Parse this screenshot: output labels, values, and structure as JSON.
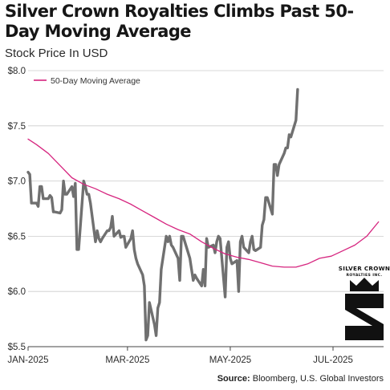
{
  "header": {
    "title": "Silver Crown Royalties Climbs Past 50-Day Moving Average",
    "unit_label": "Stock Price In USD"
  },
  "source": {
    "label": "Source:",
    "text": "Bloomberg, U.S. Global Investors"
  },
  "logo": {
    "line1": "SILVER CROWN",
    "line2": "ROYALTIES INC.",
    "icon": "crown-s-logo-icon"
  },
  "colors": {
    "price": "#707070",
    "ma": "#d6257f",
    "grid": "#cccccc",
    "axis": "#444444"
  },
  "chart_data": {
    "type": "line",
    "title": "Silver Crown Royalties Climbs Past 50-Day Moving Average",
    "ylabel": "Stock Price In USD",
    "xlabel": "",
    "ylim": [
      5.5,
      8.0
    ],
    "y_ticks": [
      5.5,
      6.0,
      6.5,
      7.0,
      7.5,
      8.0
    ],
    "y_tick_labels": [
      "$5.5",
      "$6.0",
      "$6.5",
      "$7.0",
      "$7.5",
      "$8.0"
    ],
    "x_ticks": [
      "2025-01-01",
      "2025-03-01",
      "2025-05-01",
      "2025-07-01"
    ],
    "x_tick_labels": [
      "JAN-2025",
      "MAR-2025",
      "MAY-2025",
      "JUL-2025"
    ],
    "grid": "horizontal",
    "legend": "top-left",
    "series": [
      {
        "name": "",
        "color": "#707070",
        "points": [
          [
            "2025-01-01",
            7.08
          ],
          [
            "2025-01-02",
            7.06
          ],
          [
            "2025-01-03",
            6.8
          ],
          [
            "2025-01-06",
            6.8
          ],
          [
            "2025-01-07",
            6.77
          ],
          [
            "2025-01-08",
            6.95
          ],
          [
            "2025-01-09",
            6.95
          ],
          [
            "2025-01-10",
            6.84
          ],
          [
            "2025-01-13",
            6.84
          ],
          [
            "2025-01-14",
            6.87
          ],
          [
            "2025-01-15",
            6.85
          ],
          [
            "2025-01-16",
            6.72
          ],
          [
            "2025-01-17",
            6.72
          ],
          [
            "2025-01-20",
            6.71
          ],
          [
            "2025-01-21",
            6.74
          ],
          [
            "2025-01-22",
            7.0
          ],
          [
            "2025-01-23",
            6.88
          ],
          [
            "2025-01-24",
            6.88
          ],
          [
            "2025-01-27",
            6.95
          ],
          [
            "2025-01-28",
            6.86
          ],
          [
            "2025-01-29",
            6.98
          ],
          [
            "2025-01-30",
            6.38
          ],
          [
            "2025-01-31",
            6.38
          ],
          [
            "2025-02-03",
            7.0
          ],
          [
            "2025-02-04",
            6.95
          ],
          [
            "2025-02-05",
            6.88
          ],
          [
            "2025-02-06",
            6.88
          ],
          [
            "2025-02-07",
            6.8
          ],
          [
            "2025-02-10",
            6.45
          ],
          [
            "2025-02-11",
            6.55
          ],
          [
            "2025-02-12",
            6.48
          ],
          [
            "2025-02-13",
            6.45
          ],
          [
            "2025-02-14",
            6.48
          ],
          [
            "2025-02-17",
            6.55
          ],
          [
            "2025-02-18",
            6.55
          ],
          [
            "2025-02-19",
            6.58
          ],
          [
            "2025-02-20",
            6.68
          ],
          [
            "2025-02-21",
            6.5
          ],
          [
            "2025-02-24",
            6.55
          ],
          [
            "2025-02-25",
            6.49
          ],
          [
            "2025-02-26",
            6.5
          ],
          [
            "2025-02-27",
            6.5
          ],
          [
            "2025-02-28",
            6.4
          ],
          [
            "2025-03-03",
            6.48
          ],
          [
            "2025-03-04",
            6.55
          ],
          [
            "2025-03-05",
            6.38
          ],
          [
            "2025-03-06",
            6.3
          ],
          [
            "2025-03-07",
            6.25
          ],
          [
            "2025-03-10",
            6.15
          ],
          [
            "2025-03-11",
            6.05
          ],
          [
            "2025-03-12",
            5.56
          ],
          [
            "2025-03-13",
            5.6
          ],
          [
            "2025-03-14",
            5.9
          ],
          [
            "2025-03-17",
            5.7
          ],
          [
            "2025-03-18",
            5.6
          ],
          [
            "2025-03-19",
            5.85
          ],
          [
            "2025-03-20",
            5.9
          ],
          [
            "2025-03-21",
            6.2
          ],
          [
            "2025-03-24",
            6.5
          ],
          [
            "2025-03-25",
            6.45
          ],
          [
            "2025-03-26",
            6.5
          ],
          [
            "2025-03-27",
            6.42
          ],
          [
            "2025-03-28",
            6.4
          ],
          [
            "2025-03-31",
            6.3
          ],
          [
            "2025-04-01",
            6.1
          ],
          [
            "2025-04-02",
            6.5
          ],
          [
            "2025-04-03",
            6.5
          ],
          [
            "2025-04-04",
            6.45
          ],
          [
            "2025-04-07",
            6.3
          ],
          [
            "2025-04-08",
            6.2
          ],
          [
            "2025-04-09",
            6.1
          ],
          [
            "2025-04-10",
            6.15
          ],
          [
            "2025-04-11",
            6.12
          ],
          [
            "2025-04-14",
            6.05
          ],
          [
            "2025-04-15",
            6.2
          ],
          [
            "2025-04-16",
            6.05
          ],
          [
            "2025-04-17",
            6.48
          ],
          [
            "2025-04-18",
            6.4
          ],
          [
            "2025-04-21",
            6.42
          ],
          [
            "2025-04-22",
            6.35
          ],
          [
            "2025-04-23",
            6.45
          ],
          [
            "2025-04-24",
            6.5
          ],
          [
            "2025-04-25",
            6.48
          ],
          [
            "2025-04-28",
            5.95
          ],
          [
            "2025-04-29",
            6.4
          ],
          [
            "2025-04-30",
            6.45
          ],
          [
            "2025-05-01",
            6.3
          ],
          [
            "2025-05-02",
            6.25
          ],
          [
            "2025-05-05",
            6.28
          ],
          [
            "2025-05-06",
            6.0
          ],
          [
            "2025-05-07",
            6.45
          ],
          [
            "2025-05-08",
            6.5
          ],
          [
            "2025-05-09",
            6.4
          ],
          [
            "2025-05-12",
            6.35
          ],
          [
            "2025-05-13",
            6.45
          ],
          [
            "2025-05-14",
            6.5
          ],
          [
            "2025-05-15",
            6.38
          ],
          [
            "2025-05-16",
            6.37
          ],
          [
            "2025-05-19",
            6.4
          ],
          [
            "2025-05-20",
            6.6
          ],
          [
            "2025-05-21",
            6.65
          ],
          [
            "2025-05-22",
            6.85
          ],
          [
            "2025-05-23",
            6.85
          ],
          [
            "2025-05-26",
            6.7
          ],
          [
            "2025-05-27",
            7.15
          ],
          [
            "2025-05-28",
            7.15
          ],
          [
            "2025-05-29",
            7.05
          ],
          [
            "2025-05-30",
            7.15
          ],
          [
            "2025-06-02",
            7.25
          ],
          [
            "2025-06-03",
            7.3
          ],
          [
            "2025-06-04",
            7.3
          ],
          [
            "2025-06-05",
            7.42
          ],
          [
            "2025-06-06",
            7.4
          ],
          [
            "2025-06-09",
            7.55
          ],
          [
            "2025-06-10",
            7.83
          ]
        ]
      },
      {
        "name": "50-Day Moving Average",
        "color": "#d6257f",
        "points": [
          [
            "2025-01-01",
            7.38
          ],
          [
            "2025-01-06",
            7.33
          ],
          [
            "2025-01-13",
            7.25
          ],
          [
            "2025-01-20",
            7.14
          ],
          [
            "2025-01-27",
            7.03
          ],
          [
            "2025-02-03",
            6.97
          ],
          [
            "2025-02-10",
            6.93
          ],
          [
            "2025-02-17",
            6.88
          ],
          [
            "2025-02-24",
            6.84
          ],
          [
            "2025-03-03",
            6.79
          ],
          [
            "2025-03-10",
            6.73
          ],
          [
            "2025-03-17",
            6.67
          ],
          [
            "2025-03-24",
            6.61
          ],
          [
            "2025-03-31",
            6.56
          ],
          [
            "2025-04-07",
            6.52
          ],
          [
            "2025-04-14",
            6.45
          ],
          [
            "2025-04-21",
            6.39
          ],
          [
            "2025-04-28",
            6.34
          ],
          [
            "2025-05-05",
            6.31
          ],
          [
            "2025-05-12",
            6.29
          ],
          [
            "2025-05-19",
            6.26
          ],
          [
            "2025-05-26",
            6.23
          ],
          [
            "2025-06-02",
            6.22
          ],
          [
            "2025-06-09",
            6.22
          ],
          [
            "2025-06-16",
            6.25
          ],
          [
            "2025-06-23",
            6.3
          ],
          [
            "2025-06-30",
            6.32
          ],
          [
            "2025-07-07",
            6.37
          ],
          [
            "2025-07-14",
            6.42
          ],
          [
            "2025-07-21",
            6.5
          ],
          [
            "2025-07-28",
            6.63
          ]
        ]
      }
    ]
  }
}
